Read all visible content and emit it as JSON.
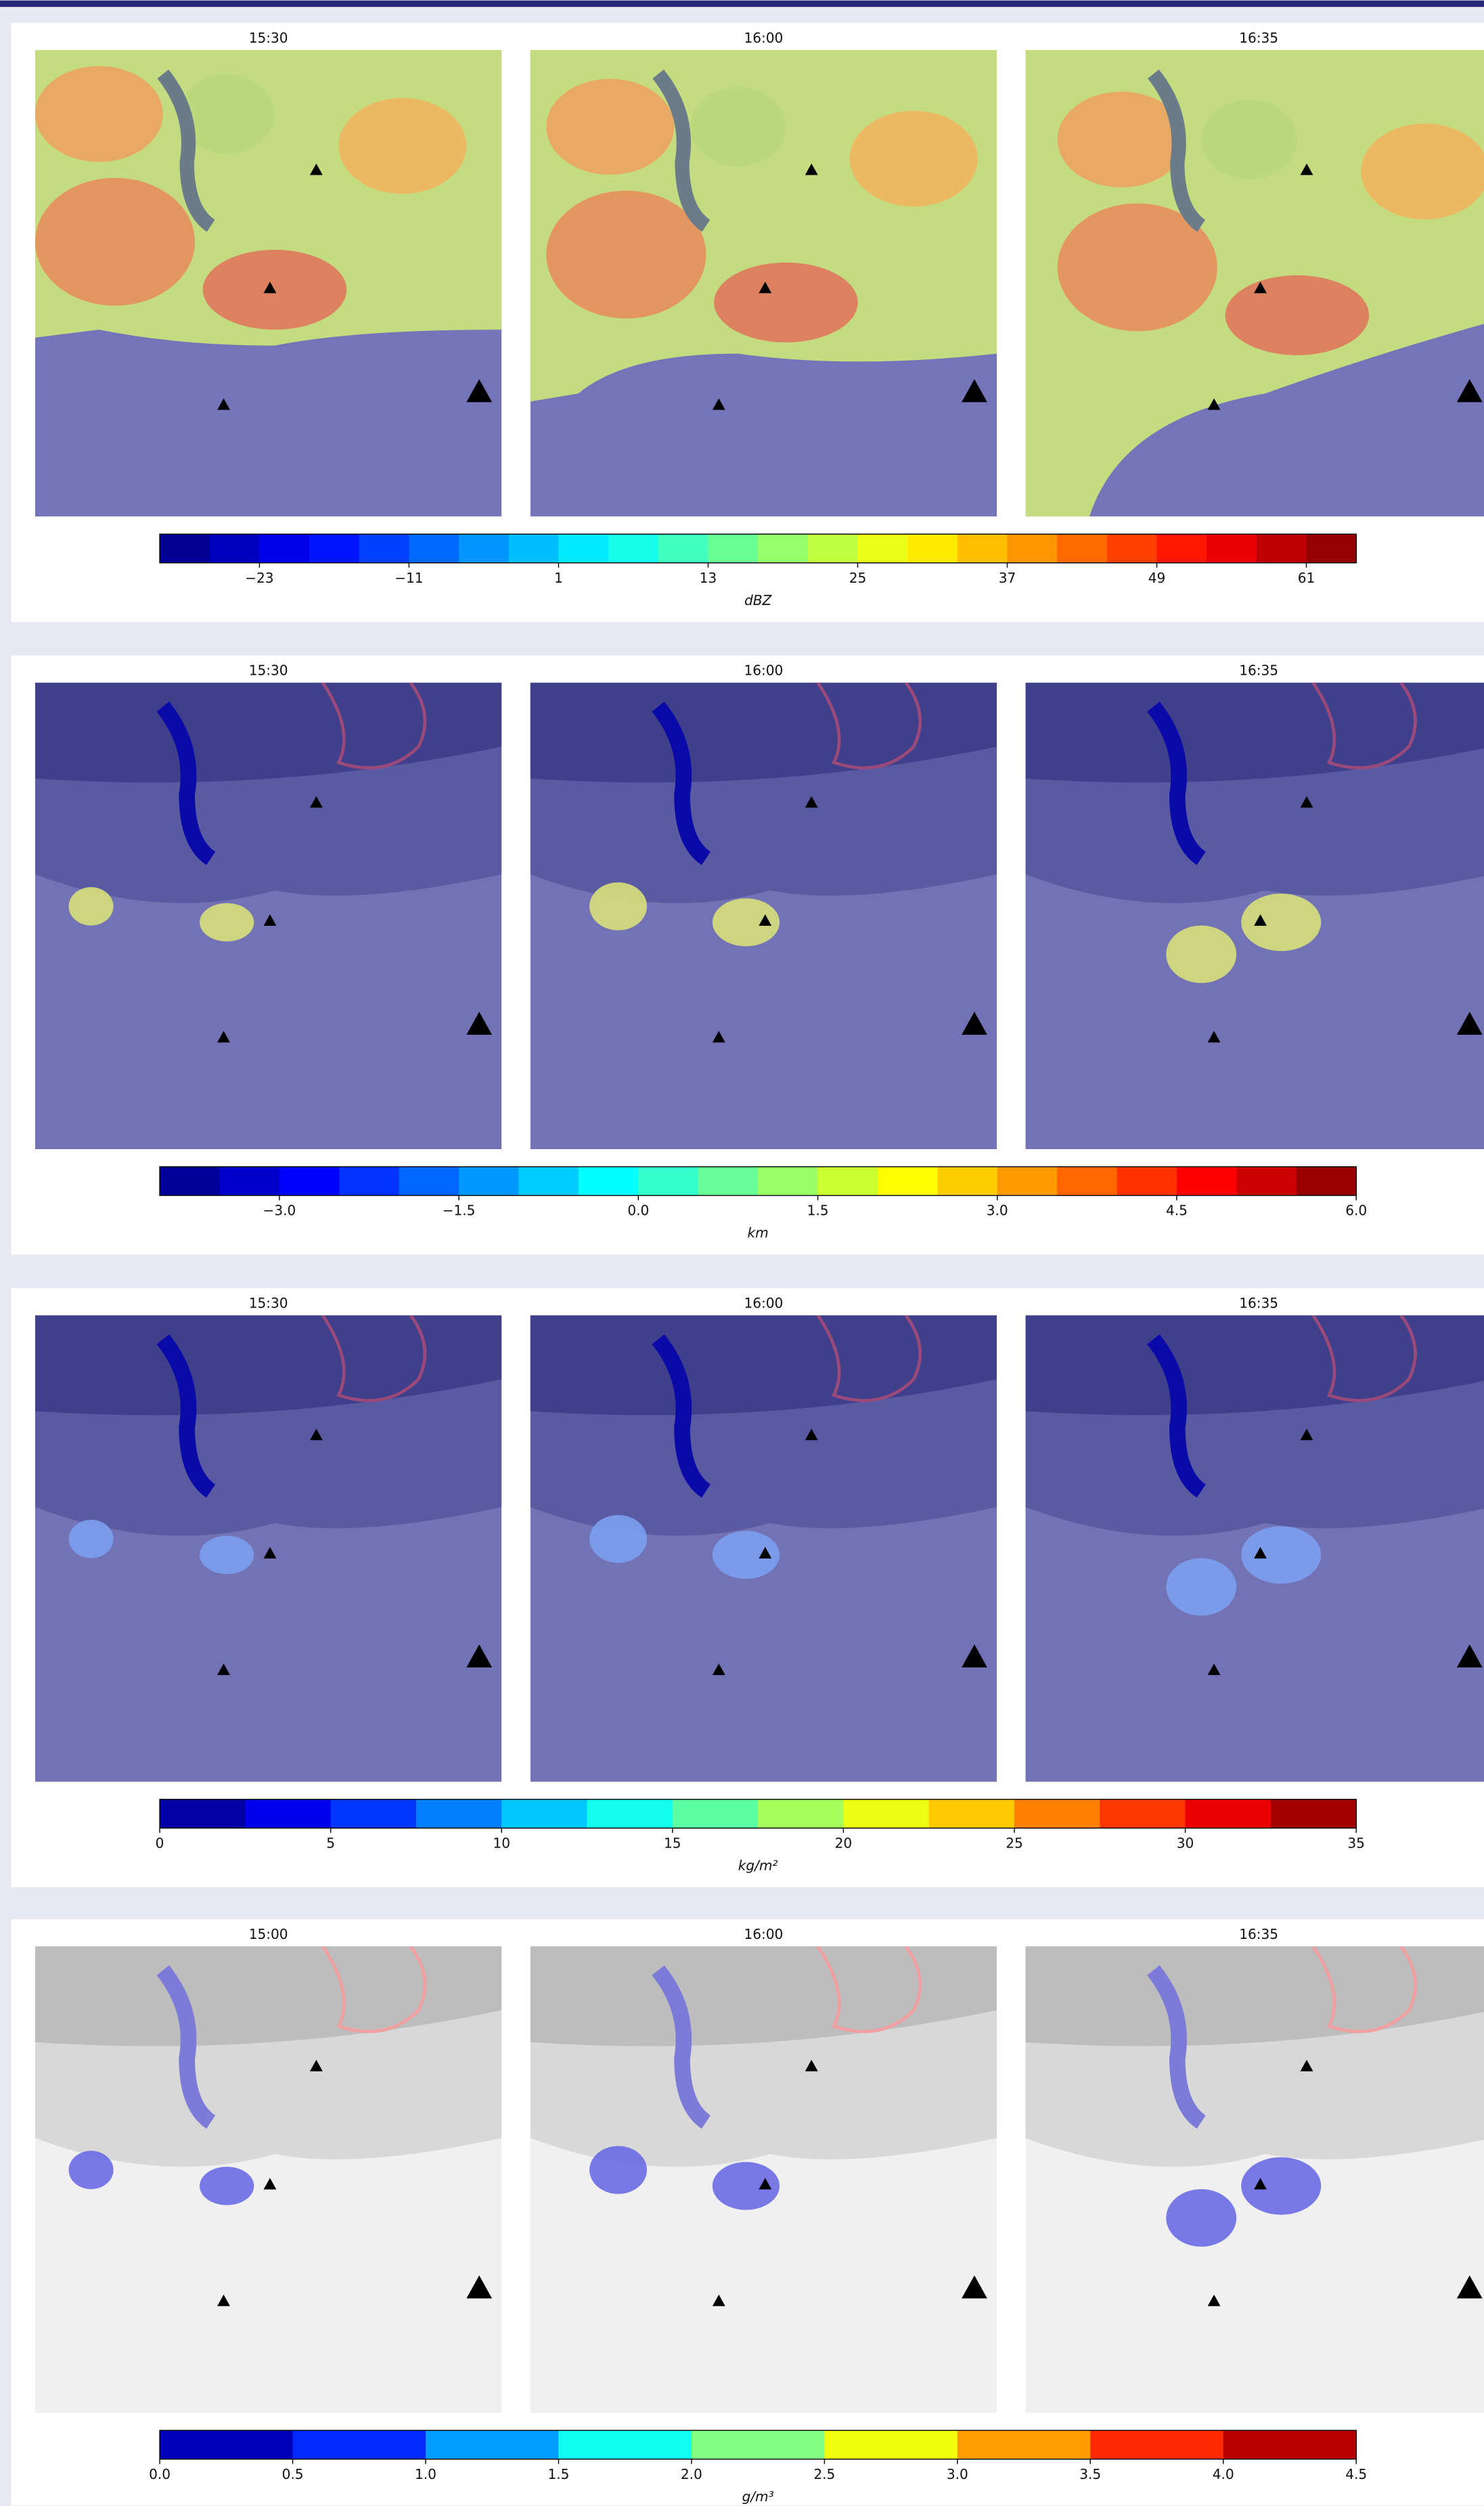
{
  "rows": [
    {
      "times": [
        "15:30",
        "16:00",
        "16:35"
      ],
      "colorbar": {
        "label": "dBZ",
        "colormap": "jet",
        "levels": 24,
        "lim": [
          -31,
          65
        ],
        "ticks": [
          {
            "value": -23,
            "label": "−23"
          },
          {
            "value": -11,
            "label": "−11"
          },
          1,
          13,
          25,
          37,
          49,
          61
        ]
      }
    },
    {
      "times": [
        "15:30",
        "16:00",
        "16:35"
      ],
      "colorbar": {
        "label": "km",
        "colormap": "jet",
        "levels": 20,
        "lim": [
          -4,
          6
        ],
        "ticks": [
          {
            "value": -3,
            "label": "−3.0"
          },
          {
            "value": -1.5,
            "label": "−1.5"
          },
          {
            "value": 0,
            "label": "0.0"
          },
          1.5,
          {
            "value": 3,
            "label": "3.0"
          },
          4.5,
          {
            "value": 6,
            "label": "6.0"
          }
        ]
      }
    },
    {
      "times": [
        "15:30",
        "16:00",
        "16:35"
      ],
      "colorbar": {
        "label": "kg/m²",
        "colormap": "jet",
        "levels": 14,
        "lim": [
          0,
          35
        ],
        "ticks": [
          0,
          5,
          10,
          15,
          20,
          25,
          30,
          35
        ]
      }
    },
    {
      "times": [
        "15:00",
        "16:00",
        "16:35"
      ],
      "colorbar": {
        "label": "g/m³",
        "colormap": "jet",
        "levels": 9,
        "lim": [
          0,
          4.5
        ],
        "ticks": [
          {
            "value": 0,
            "label": "0.0"
          },
          0.5,
          {
            "value": 1,
            "label": "1.0"
          },
          1.5,
          {
            "value": 2,
            "label": "2.0"
          },
          2.5,
          {
            "value": 3,
            "label": "3.0"
          },
          3.5,
          {
            "value": 4,
            "label": "4.0"
          },
          4.5
        ]
      }
    }
  ]
}
